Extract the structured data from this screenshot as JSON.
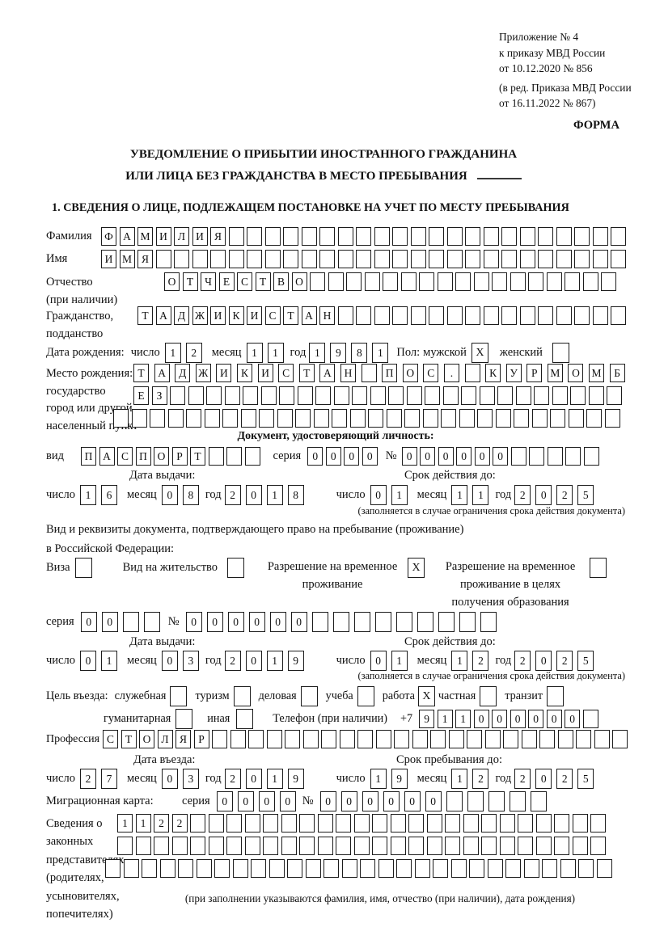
{
  "colors": {
    "ink": "#1a1a1a",
    "paper": "#ffffff"
  },
  "header": {
    "ref_lines": [
      "Приложение № 4",
      "к приказу МВД России",
      "от 10.12.2020 № 856"
    ],
    "ref_sub_lines": [
      "(в ред. Приказа МВД России",
      "от 16.11.2022 № 867)"
    ],
    "form_label": "ФОРМА"
  },
  "title": {
    "line1": "УВЕДОМЛЕНИЕ О ПРИБЫТИИ ИНОСТРАННОГО ГРАЖДАНИНА",
    "line2": "ИЛИ ЛИЦА БЕЗ ГРАЖДАНСТВА В МЕСТО ПРЕБЫВАНИЯ"
  },
  "section1_heading": "1. СВЕДЕНИЯ О ЛИЦЕ, ПОДЛЕЖАЩЕМ ПОСТАНОВКЕ НА УЧЕТ ПО МЕСТУ ПРЕБЫВАНИЯ",
  "labels": {
    "day": "число",
    "month": "месяц",
    "year": "год",
    "seria": "серия",
    "num": "№",
    "issue_date": "Дата выдачи:",
    "valid_until": "Срок действия до:",
    "entry_date": "Дата въезда:",
    "stay_until": "Срок пребывания до:",
    "validity_note": "(заполняется в случае ограничения срока действия документа)",
    "phone": "Телефон (при наличии)",
    "phone_prefix": "+7"
  },
  "person": {
    "surname": {
      "label": "Фамилия",
      "value": "ФАМИЛИЯ",
      "len": 29
    },
    "firstname": {
      "label": "Имя",
      "value": "ИМЯ",
      "len": 29
    },
    "patronymic": {
      "label_lines": [
        "Отчество",
        "(при наличии)"
      ],
      "value": "ОТЧЕСТВО",
      "len": 25
    },
    "citizenship": {
      "label_lines": [
        "Гражданство,",
        "подданство"
      ],
      "value": "ТАДЖИКИСТАН",
      "len": 27
    },
    "birth_date": {
      "label": "Дата рождения:",
      "day": {
        "value": "12",
        "len": 2
      },
      "month": {
        "value": "11",
        "len": 2
      },
      "year": {
        "value": "1981",
        "len": 4
      }
    },
    "sex": {
      "label": "Пол:",
      "male_label": "мужской",
      "male": "X",
      "female_label": "женский",
      "female": ""
    },
    "birth_place": {
      "label_lines": [
        "Место рождения:",
        "государство",
        "город или другой",
        "населенный пункт"
      ],
      "row1": {
        "value": "ТАДЖИКИСТАН ПОС. КУРМОМБ",
        "len": 24
      },
      "row2": {
        "value": "ЕЗ",
        "len": 27
      },
      "row3": {
        "value": "",
        "len": 28
      }
    }
  },
  "identity_doc": {
    "heading": "Документ, удостоверяющий личность:",
    "kind": {
      "label": "вид",
      "value": "ПАСПОРТ",
      "len": 10
    },
    "seria": {
      "value": "0000",
      "len": 4
    },
    "number": {
      "value": "000000",
      "len": 11
    },
    "issue": {
      "day": {
        "value": "16",
        "len": 2
      },
      "month": {
        "value": "08",
        "len": 2
      },
      "year": {
        "value": "2018",
        "len": 4
      }
    },
    "valid": {
      "day": {
        "value": "01",
        "len": 2
      },
      "month": {
        "value": "11",
        "len": 2
      },
      "year": {
        "value": "2025",
        "len": 4
      }
    }
  },
  "residence_doc": {
    "intro_line1": "Вид и реквизиты документа, подтверждающего право на пребывание (проживание)",
    "intro_line2": "в Российской Федерации:",
    "options": [
      {
        "label_lines": [
          "Виза"
        ],
        "checked": ""
      },
      {
        "label_lines": [
          "Вид на жительство"
        ],
        "checked": ""
      },
      {
        "label_lines": [
          "Разрешение на временное",
          "проживание"
        ],
        "checked": "X"
      },
      {
        "label_lines": [
          "Разрешение на временное",
          "проживание в целях",
          "получения образования"
        ],
        "checked": ""
      }
    ],
    "seria": {
      "value": "00",
      "len": 4
    },
    "number": {
      "value": "000000",
      "len": 15
    },
    "issue": {
      "day": {
        "value": "01",
        "len": 2
      },
      "month": {
        "value": "03",
        "len": 2
      },
      "year": {
        "value": "2019",
        "len": 4
      }
    },
    "valid": {
      "day": {
        "value": "01",
        "len": 2
      },
      "month": {
        "value": "12",
        "len": 2
      },
      "year": {
        "value": "2025",
        "len": 4
      }
    }
  },
  "visit": {
    "purpose_label": "Цель въезда:",
    "purposes": [
      {
        "label": "служебная",
        "checked": ""
      },
      {
        "label": "туризм",
        "checked": ""
      },
      {
        "label": "деловая",
        "checked": ""
      },
      {
        "label": "учеба",
        "checked": ""
      },
      {
        "label": "работа",
        "checked": "X"
      },
      {
        "label": "частная",
        "checked": ""
      },
      {
        "label": "транзит",
        "checked": ""
      },
      {
        "label": "гуманитарная",
        "checked": ""
      },
      {
        "label": "иная",
        "checked": ""
      }
    ],
    "phone": {
      "value": "911000000",
      "len": 10
    },
    "profession": {
      "label": "Профессия",
      "value": "СТОЛЯР",
      "len": 29
    },
    "entry": {
      "day": {
        "value": "27",
        "len": 2
      },
      "month": {
        "value": "03",
        "len": 2
      },
      "year": {
        "value": "2019",
        "len": 4
      }
    },
    "stay": {
      "day": {
        "value": "19",
        "len": 2
      },
      "month": {
        "value": "12",
        "len": 2
      },
      "year": {
        "value": "2025",
        "len": 4
      }
    }
  },
  "migration_card": {
    "label": "Миграционная карта:",
    "seria": {
      "value": "0000",
      "len": 4
    },
    "number": {
      "value": "000000",
      "len": 11
    }
  },
  "representatives": {
    "label_lines": [
      "Сведения о",
      "законных",
      "представителях",
      "(родителях,",
      "усыновителях,",
      "попечителях)"
    ],
    "row1": {
      "value": "1122",
      "len": 27
    },
    "row2": {
      "value": "",
      "len": 27
    },
    "row3": {
      "value": "",
      "len": 28
    },
    "note": "(при заполнении указываются фамилия, имя, отчество (при наличии), дата рождения)"
  }
}
